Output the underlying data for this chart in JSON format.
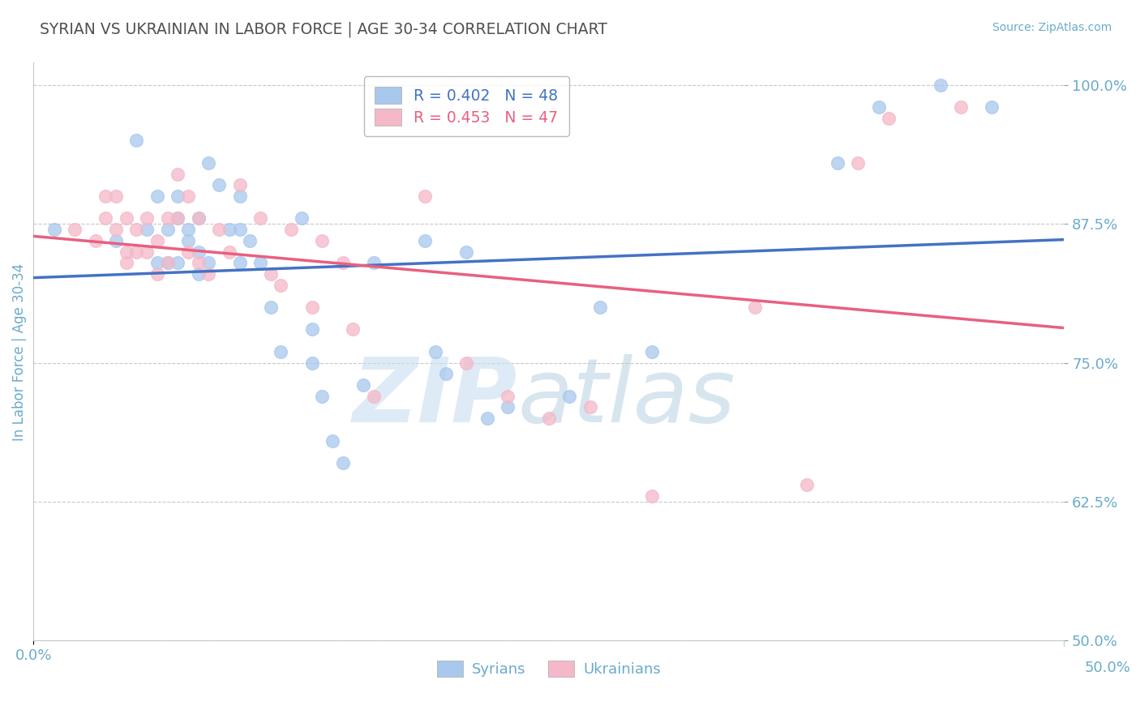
{
  "title": "SYRIAN VS UKRAINIAN IN LABOR FORCE | AGE 30-34 CORRELATION CHART",
  "source": "Source: ZipAtlas.com",
  "ylabel": "In Labor Force | Age 30-34",
  "xlim": [
    0.0,
    0.5
  ],
  "ylim": [
    0.5,
    1.02
  ],
  "yticks": [
    0.5,
    0.625,
    0.75,
    0.875,
    1.0
  ],
  "ytick_labels": [
    "50.0%",
    "62.5%",
    "75.0%",
    "87.5%",
    "100.0%"
  ],
  "R_syrian": 0.402,
  "N_syrian": 48,
  "R_ukrainian": 0.453,
  "N_ukrainian": 47,
  "syrian_color": "#a8c8ed",
  "ukrainian_color": "#f4b8c8",
  "syrian_line_color": "#4472c4",
  "ukrainian_line_color": "#e86080",
  "background_color": "#ffffff",
  "grid_color": "#c8c8c8",
  "title_color": "#505050",
  "axis_color": "#6aabcc",
  "syrian_x": [
    0.01,
    0.04,
    0.05,
    0.055,
    0.06,
    0.06,
    0.065,
    0.065,
    0.07,
    0.07,
    0.07,
    0.075,
    0.075,
    0.08,
    0.08,
    0.08,
    0.085,
    0.085,
    0.09,
    0.095,
    0.1,
    0.1,
    0.1,
    0.105,
    0.11,
    0.115,
    0.12,
    0.13,
    0.135,
    0.135,
    0.14,
    0.145,
    0.15,
    0.16,
    0.165,
    0.19,
    0.195,
    0.2,
    0.21,
    0.22,
    0.23,
    0.26,
    0.275,
    0.3,
    0.39,
    0.41,
    0.44,
    0.465
  ],
  "syrian_y": [
    0.87,
    0.86,
    0.95,
    0.87,
    0.84,
    0.9,
    0.84,
    0.87,
    0.84,
    0.9,
    0.88,
    0.87,
    0.86,
    0.88,
    0.85,
    0.83,
    0.84,
    0.93,
    0.91,
    0.87,
    0.9,
    0.87,
    0.84,
    0.86,
    0.84,
    0.8,
    0.76,
    0.88,
    0.78,
    0.75,
    0.72,
    0.68,
    0.66,
    0.73,
    0.84,
    0.86,
    0.76,
    0.74,
    0.85,
    0.7,
    0.71,
    0.72,
    0.8,
    0.76,
    0.93,
    0.98,
    1.0,
    0.98
  ],
  "ukrainian_x": [
    0.02,
    0.03,
    0.035,
    0.035,
    0.04,
    0.04,
    0.045,
    0.045,
    0.045,
    0.05,
    0.05,
    0.055,
    0.055,
    0.06,
    0.06,
    0.065,
    0.065,
    0.07,
    0.07,
    0.075,
    0.075,
    0.08,
    0.08,
    0.085,
    0.09,
    0.095,
    0.1,
    0.11,
    0.115,
    0.12,
    0.125,
    0.135,
    0.14,
    0.15,
    0.155,
    0.165,
    0.19,
    0.21,
    0.23,
    0.25,
    0.27,
    0.3,
    0.35,
    0.375,
    0.4,
    0.415,
    0.45
  ],
  "ukrainian_y": [
    0.87,
    0.86,
    0.9,
    0.88,
    0.9,
    0.87,
    0.88,
    0.85,
    0.84,
    0.87,
    0.85,
    0.88,
    0.85,
    0.86,
    0.83,
    0.88,
    0.84,
    0.92,
    0.88,
    0.9,
    0.85,
    0.88,
    0.84,
    0.83,
    0.87,
    0.85,
    0.91,
    0.88,
    0.83,
    0.82,
    0.87,
    0.8,
    0.86,
    0.84,
    0.78,
    0.72,
    0.9,
    0.75,
    0.72,
    0.7,
    0.71,
    0.63,
    0.8,
    0.64,
    0.93,
    0.97,
    0.98
  ]
}
